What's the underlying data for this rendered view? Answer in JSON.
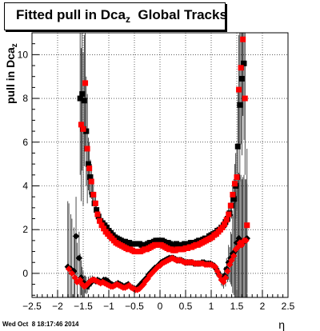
{
  "chart_data": {
    "type": "scatter",
    "title": {
      "main": "Fitted pull in Dca",
      "sub": "z",
      "rest": "  Global Tracks"
    },
    "ylabel": {
      "main": "pull in Dca",
      "sub": "z"
    },
    "xlabel": "η",
    "timestamp": "Wed Oct  8 18:17:46 2014",
    "xlim": [
      -2.5,
      2.5
    ],
    "ylim": [
      -1.1,
      11.0
    ],
    "xticks": [
      -2.5,
      -2,
      -1.5,
      -1,
      -0.5,
      0,
      0.5,
      1,
      1.5,
      2,
      2.5
    ],
    "xtick_labels": [
      "−2.5",
      "−2",
      "−1.5",
      "−1",
      "−0.5",
      "0",
      "0.5",
      "1",
      "1.5",
      "2",
      "2.5"
    ],
    "yticks": [
      0,
      2,
      4,
      6,
      8,
      10
    ],
    "ytick_labels": [
      "0",
      "2",
      "4",
      "6",
      "8",
      "10"
    ],
    "grid": true,
    "series": [
      {
        "marker": "square",
        "color": "#000000",
        "x": [
          -1.56,
          -1.52,
          -1.48,
          -1.44,
          -1.4,
          -1.36,
          -1.32,
          -1.28,
          -1.24,
          -1.2,
          -1.16,
          -1.12,
          -1.08,
          -1.04,
          -1.0,
          -0.96,
          -0.92,
          -0.88,
          -0.84,
          -0.8,
          -0.76,
          -0.72,
          -0.68,
          -0.64,
          -0.6,
          -0.56,
          -0.52,
          -0.48,
          -0.44,
          -0.4,
          -0.36,
          -0.32,
          -0.28,
          -0.24,
          -0.2,
          -0.16,
          -0.12,
          -0.08,
          -0.04,
          0.0,
          0.04,
          0.08,
          0.12,
          0.16,
          0.2,
          0.24,
          0.28,
          0.32,
          0.36,
          0.4,
          0.44,
          0.48,
          0.52,
          0.56,
          0.6,
          0.64,
          0.68,
          0.72,
          0.76,
          0.8,
          0.84,
          0.88,
          0.92,
          0.96,
          1.0,
          1.04,
          1.08,
          1.12,
          1.16,
          1.2,
          1.24,
          1.28,
          1.32,
          1.36,
          1.4,
          1.44,
          1.48,
          1.52,
          1.56,
          1.6,
          1.64
        ],
        "y": [
          8.0,
          8.2,
          7.9,
          6.5,
          5.0,
          4.4,
          3.6,
          3.2,
          2.9,
          2.6,
          2.4,
          2.3,
          2.2,
          2.1,
          1.95,
          1.85,
          1.75,
          1.65,
          1.6,
          1.55,
          1.5,
          1.45,
          1.45,
          1.4,
          1.4,
          1.35,
          1.35,
          1.35,
          1.35,
          1.35,
          1.3,
          1.3,
          1.3,
          1.35,
          1.4,
          1.4,
          1.45,
          1.5,
          1.5,
          1.5,
          1.5,
          1.45,
          1.4,
          1.4,
          1.35,
          1.3,
          1.3,
          1.35,
          1.3,
          1.3,
          1.3,
          1.35,
          1.35,
          1.35,
          1.4,
          1.4,
          1.4,
          1.45,
          1.5,
          1.5,
          1.55,
          1.6,
          1.6,
          1.7,
          1.75,
          1.8,
          1.85,
          1.95,
          2.0,
          2.1,
          2.2,
          2.35,
          2.5,
          2.75,
          3.1,
          3.4,
          4.0,
          5.8,
          7.7,
          8.9,
          9.6
        ],
        "yerr": [
          3.5,
          3.5,
          3.0,
          2.5,
          1.2,
          0.8,
          0.5,
          0.4,
          0.3,
          0.2,
          0.2,
          0.15,
          0.15,
          0.1,
          0.1,
          0.1,
          0.1,
          0.1,
          0.1,
          0.1,
          0.1,
          0.1,
          0.1,
          0.1,
          0.1,
          0.1,
          0.1,
          0.1,
          0.1,
          0.1,
          0.1,
          0.1,
          0.1,
          0.1,
          0.1,
          0.1,
          0.1,
          0.1,
          0.1,
          0.1,
          0.1,
          0.1,
          0.1,
          0.1,
          0.1,
          0.1,
          0.1,
          0.1,
          0.1,
          0.1,
          0.1,
          0.1,
          0.1,
          0.1,
          0.1,
          0.1,
          0.1,
          0.1,
          0.1,
          0.1,
          0.1,
          0.1,
          0.1,
          0.1,
          0.1,
          0.1,
          0.1,
          0.1,
          0.1,
          0.15,
          0.2,
          0.2,
          0.3,
          0.4,
          0.6,
          0.9,
          1.5,
          2.5,
          3.5,
          3.5,
          3.5
        ]
      },
      {
        "marker": "square",
        "color": "#ff0000",
        "x": [
          -1.54,
          -1.5,
          -1.46,
          -1.42,
          -1.38,
          -1.34,
          -1.3,
          -1.26,
          -1.22,
          -1.18,
          -1.14,
          -1.1,
          -1.06,
          -1.02,
          -0.98,
          -0.94,
          -0.9,
          -0.86,
          -0.82,
          -0.78,
          -0.74,
          -0.7,
          -0.66,
          -0.62,
          -0.58,
          -0.54,
          -0.5,
          -0.46,
          -0.42,
          -0.38,
          -0.34,
          -0.3,
          -0.26,
          -0.22,
          -0.18,
          -0.14,
          -0.1,
          -0.06,
          -0.02,
          0.02,
          0.06,
          0.1,
          0.14,
          0.18,
          0.22,
          0.26,
          0.3,
          0.34,
          0.38,
          0.42,
          0.46,
          0.5,
          0.54,
          0.58,
          0.62,
          0.66,
          0.7,
          0.74,
          0.78,
          0.82,
          0.86,
          0.9,
          0.94,
          0.98,
          1.02,
          1.06,
          1.1,
          1.14,
          1.18,
          1.22,
          1.26,
          1.3,
          1.34,
          1.38,
          1.42,
          1.46,
          1.5,
          1.54,
          1.58,
          1.62,
          1.66,
          1.7
        ],
        "y": [
          6.8,
          6.6,
          8.7,
          5.7,
          4.8,
          4.2,
          3.6,
          3.2,
          2.7,
          2.4,
          2.2,
          2.05,
          1.9,
          1.8,
          1.7,
          1.6,
          1.5,
          1.4,
          1.35,
          1.3,
          1.25,
          1.2,
          1.15,
          1.1,
          1.1,
          1.05,
          1.0,
          1.0,
          1.0,
          1.0,
          1.05,
          1.1,
          1.1,
          1.15,
          1.2,
          1.25,
          1.3,
          1.3,
          1.3,
          1.3,
          1.25,
          1.2,
          1.15,
          1.1,
          1.1,
          1.05,
          1.05,
          1.1,
          1.1,
          1.1,
          1.1,
          1.15,
          1.15,
          1.2,
          1.2,
          1.25,
          1.3,
          1.3,
          1.35,
          1.4,
          1.45,
          1.5,
          1.55,
          1.6,
          1.65,
          1.75,
          1.8,
          1.9,
          2.0,
          2.1,
          2.25,
          2.45,
          2.7,
          3.1,
          3.6,
          4.1,
          4.4,
          8.4,
          9.4,
          10.7,
          8.0,
          2.2
        ],
        "yerr": [
          3.5,
          3.5,
          3.0,
          2.5,
          1.2,
          0.8,
          0.5,
          0.4,
          0.3,
          0.2,
          0.2,
          0.15,
          0.15,
          0.1,
          0.1,
          0.1,
          0.1,
          0.1,
          0.1,
          0.1,
          0.1,
          0.1,
          0.1,
          0.1,
          0.1,
          0.1,
          0.1,
          0.1,
          0.1,
          0.1,
          0.1,
          0.1,
          0.1,
          0.1,
          0.1,
          0.1,
          0.1,
          0.1,
          0.1,
          0.1,
          0.1,
          0.1,
          0.1,
          0.1,
          0.1,
          0.1,
          0.1,
          0.1,
          0.1,
          0.1,
          0.1,
          0.1,
          0.1,
          0.1,
          0.1,
          0.1,
          0.1,
          0.1,
          0.1,
          0.1,
          0.1,
          0.1,
          0.1,
          0.1,
          0.1,
          0.1,
          0.1,
          0.1,
          0.1,
          0.15,
          0.2,
          0.2,
          0.3,
          0.4,
          0.6,
          0.9,
          1.5,
          2.5,
          3.5,
          3.5,
          3.5,
          3.5
        ]
      },
      {
        "marker": "diamond",
        "color": "#000000",
        "x": [
          -1.8,
          -1.74,
          -1.68,
          -1.64,
          -1.58,
          -1.54,
          -1.5,
          -1.46,
          -1.42,
          -1.38,
          -1.34,
          -1.3,
          -1.26,
          -1.22,
          -1.18,
          -1.14,
          -1.1,
          -1.06,
          -1.02,
          -0.98,
          -0.94,
          -0.9,
          -0.86,
          -0.82,
          -0.78,
          -0.74,
          -0.7,
          -0.66,
          -0.62,
          -0.58,
          -0.54,
          -0.5,
          -0.46,
          -0.42,
          -0.38,
          -0.34,
          -0.3,
          -0.26,
          -0.22,
          -0.18,
          -0.14,
          -0.1,
          -0.06,
          -0.02,
          0.02,
          0.06,
          0.1,
          0.14,
          0.18,
          0.22,
          0.26,
          0.3,
          0.34,
          0.38,
          0.42,
          0.46,
          0.5,
          0.54,
          0.58,
          0.62,
          0.66,
          0.7,
          0.74,
          0.78,
          0.82,
          0.86,
          0.9,
          0.94,
          0.98,
          1.02,
          1.06,
          1.1,
          1.14,
          1.18,
          1.22,
          1.26,
          1.3,
          1.34,
          1.38,
          1.42,
          1.46,
          1.5,
          1.54,
          1.58,
          1.62,
          1.66,
          1.7
        ],
        "y": [
          0.3,
          0.2,
          0.1,
          1.7,
          0.7,
          -0.2,
          -0.4,
          -0.5,
          -0.6,
          -0.5,
          -0.4,
          -0.3,
          -0.35,
          -0.3,
          -0.35,
          -0.4,
          -0.3,
          -0.3,
          -0.35,
          -0.45,
          -0.5,
          -0.55,
          -0.5,
          -0.45,
          -0.5,
          -0.55,
          -0.6,
          -0.55,
          -0.5,
          -0.6,
          -0.65,
          -0.7,
          -0.7,
          -0.6,
          -0.5,
          -0.4,
          -0.3,
          -0.2,
          -0.05,
          0.05,
          0.15,
          0.25,
          0.3,
          0.4,
          0.5,
          0.55,
          0.6,
          0.65,
          0.7,
          0.7,
          0.7,
          0.65,
          0.6,
          0.6,
          0.6,
          0.55,
          0.5,
          0.5,
          0.5,
          0.5,
          0.45,
          0.45,
          0.45,
          0.45,
          0.5,
          0.5,
          0.45,
          0.45,
          0.45,
          0.4,
          0.35,
          0.2,
          0.0,
          -0.15,
          -0.3,
          -0.1,
          0.2,
          0.5,
          0.7,
          0.9,
          1.0,
          1.4,
          1.6,
          1.5,
          1.4,
          1.5,
          1.6
        ],
        "yerr": [
          3.0,
          2.5,
          2.0,
          1.8,
          1.2,
          0.8,
          0.5,
          0.4,
          0.3,
          0.25,
          0.2,
          0.15,
          0.15,
          0.1,
          0.1,
          0.1,
          0.1,
          0.1,
          0.1,
          0.1,
          0.1,
          0.1,
          0.1,
          0.1,
          0.1,
          0.1,
          0.1,
          0.1,
          0.1,
          0.1,
          0.1,
          0.1,
          0.1,
          0.1,
          0.1,
          0.1,
          0.1,
          0.1,
          0.1,
          0.1,
          0.1,
          0.1,
          0.1,
          0.1,
          0.1,
          0.1,
          0.1,
          0.1,
          0.1,
          0.1,
          0.1,
          0.1,
          0.1,
          0.1,
          0.1,
          0.1,
          0.1,
          0.1,
          0.1,
          0.1,
          0.1,
          0.1,
          0.1,
          0.1,
          0.1,
          0.1,
          0.1,
          0.1,
          0.1,
          0.1,
          0.1,
          0.15,
          0.2,
          0.25,
          0.3,
          0.4,
          0.5,
          0.8,
          1.2,
          1.8,
          2.5,
          3.0,
          3.0,
          3.0,
          3.0,
          2.8,
          2.5
        ]
      },
      {
        "marker": "diamond",
        "color": "#ff0000",
        "x": [
          -1.78,
          -1.72,
          -1.66,
          -1.62,
          -1.56,
          -1.52,
          -1.48,
          -1.44,
          -1.4,
          -1.36,
          -1.32,
          -1.28,
          -1.24,
          -1.2,
          -1.16,
          -1.12,
          -1.08,
          -1.04,
          -1.0,
          -0.96,
          -0.92,
          -0.88,
          -0.84,
          -0.8,
          -0.76,
          -0.72,
          -0.68,
          -0.64,
          -0.6,
          -0.56,
          -0.52,
          -0.48,
          -0.44,
          -0.4,
          -0.36,
          -0.32,
          -0.28,
          -0.24,
          -0.2,
          -0.16,
          -0.12,
          -0.08,
          -0.04,
          0.0,
          0.04,
          0.08,
          0.12,
          0.16,
          0.2,
          0.24,
          0.28,
          0.32,
          0.36,
          0.4,
          0.44,
          0.48,
          0.52,
          0.56,
          0.6,
          0.64,
          0.68,
          0.72,
          0.76,
          0.8,
          0.84,
          0.88,
          0.92,
          0.96,
          1.0,
          1.04,
          1.08,
          1.12,
          1.16,
          1.2,
          1.24,
          1.28,
          1.32,
          1.36,
          1.4,
          1.44,
          1.48,
          1.52,
          1.56,
          1.6,
          1.64,
          1.68
        ],
        "y": [
          0.2,
          0.0,
          -0.2,
          -0.4,
          -0.3,
          -0.5,
          -0.6,
          -0.55,
          -0.45,
          -0.35,
          -0.3,
          -0.3,
          -0.35,
          -0.4,
          -0.45,
          -0.4,
          -0.45,
          -0.5,
          -0.55,
          -0.6,
          -0.6,
          -0.55,
          -0.5,
          -0.55,
          -0.6,
          -0.65,
          -0.65,
          -0.6,
          -0.55,
          -0.65,
          -0.7,
          -0.75,
          -0.75,
          -0.7,
          -0.6,
          -0.5,
          -0.35,
          -0.25,
          -0.1,
          0.0,
          0.1,
          0.2,
          0.3,
          0.35,
          0.45,
          0.5,
          0.55,
          0.6,
          0.65,
          0.7,
          0.65,
          0.6,
          0.6,
          0.6,
          0.55,
          0.5,
          0.5,
          0.5,
          0.5,
          0.5,
          0.45,
          0.45,
          0.45,
          0.45,
          0.45,
          0.4,
          0.4,
          0.4,
          0.4,
          0.35,
          0.3,
          0.1,
          -0.1,
          -0.3,
          -0.4,
          -0.2,
          0.1,
          0.4,
          0.6,
          0.8,
          1.1,
          1.2,
          1.4,
          1.3,
          1.5,
          1.5
        ],
        "yerr": [
          3.0,
          2.5,
          2.0,
          1.8,
          1.2,
          0.8,
          0.5,
          0.4,
          0.3,
          0.25,
          0.2,
          0.15,
          0.15,
          0.1,
          0.1,
          0.1,
          0.1,
          0.1,
          0.1,
          0.1,
          0.1,
          0.1,
          0.1,
          0.1,
          0.1,
          0.1,
          0.1,
          0.1,
          0.1,
          0.1,
          0.1,
          0.1,
          0.1,
          0.1,
          0.1,
          0.1,
          0.1,
          0.1,
          0.1,
          0.1,
          0.1,
          0.1,
          0.1,
          0.1,
          0.1,
          0.1,
          0.1,
          0.1,
          0.1,
          0.1,
          0.1,
          0.1,
          0.1,
          0.1,
          0.1,
          0.1,
          0.1,
          0.1,
          0.1,
          0.1,
          0.1,
          0.1,
          0.1,
          0.1,
          0.1,
          0.1,
          0.1,
          0.1,
          0.1,
          0.1,
          0.1,
          0.15,
          0.2,
          0.25,
          0.3,
          0.4,
          0.5,
          0.8,
          1.2,
          1.8,
          2.5,
          3.0,
          3.0,
          3.0,
          3.0,
          2.8
        ]
      }
    ]
  }
}
